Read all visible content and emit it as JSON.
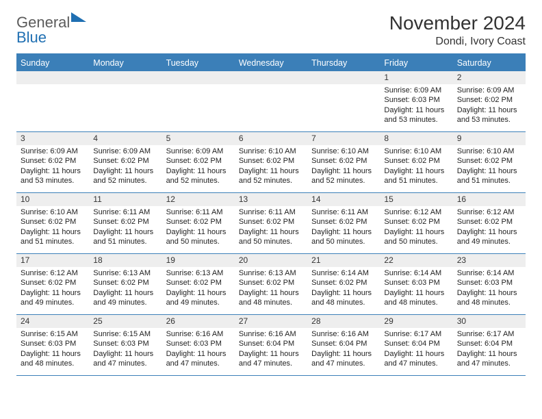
{
  "logo": {
    "word1": "General",
    "word2": "Blue",
    "tri_color": "#1f6fb2"
  },
  "title": "November 2024",
  "location": "Dondi, Ivory Coast",
  "weekdays": [
    "Sunday",
    "Monday",
    "Tuesday",
    "Wednesday",
    "Thursday",
    "Friday",
    "Saturday"
  ],
  "colors": {
    "header_bg": "#3b7fb8",
    "header_text": "#ffffff",
    "daynum_bg": "#eeeeee",
    "rule": "#3b7fb8",
    "text": "#222222",
    "page_bg": "#ffffff"
  },
  "weeks": [
    [
      null,
      null,
      null,
      null,
      null,
      {
        "n": "1",
        "sr": "Sunrise: 6:09 AM",
        "ss": "Sunset: 6:03 PM",
        "d1": "Daylight: 11 hours",
        "d2": "and 53 minutes."
      },
      {
        "n": "2",
        "sr": "Sunrise: 6:09 AM",
        "ss": "Sunset: 6:02 PM",
        "d1": "Daylight: 11 hours",
        "d2": "and 53 minutes."
      }
    ],
    [
      {
        "n": "3",
        "sr": "Sunrise: 6:09 AM",
        "ss": "Sunset: 6:02 PM",
        "d1": "Daylight: 11 hours",
        "d2": "and 53 minutes."
      },
      {
        "n": "4",
        "sr": "Sunrise: 6:09 AM",
        "ss": "Sunset: 6:02 PM",
        "d1": "Daylight: 11 hours",
        "d2": "and 52 minutes."
      },
      {
        "n": "5",
        "sr": "Sunrise: 6:09 AM",
        "ss": "Sunset: 6:02 PM",
        "d1": "Daylight: 11 hours",
        "d2": "and 52 minutes."
      },
      {
        "n": "6",
        "sr": "Sunrise: 6:10 AM",
        "ss": "Sunset: 6:02 PM",
        "d1": "Daylight: 11 hours",
        "d2": "and 52 minutes."
      },
      {
        "n": "7",
        "sr": "Sunrise: 6:10 AM",
        "ss": "Sunset: 6:02 PM",
        "d1": "Daylight: 11 hours",
        "d2": "and 52 minutes."
      },
      {
        "n": "8",
        "sr": "Sunrise: 6:10 AM",
        "ss": "Sunset: 6:02 PM",
        "d1": "Daylight: 11 hours",
        "d2": "and 51 minutes."
      },
      {
        "n": "9",
        "sr": "Sunrise: 6:10 AM",
        "ss": "Sunset: 6:02 PM",
        "d1": "Daylight: 11 hours",
        "d2": "and 51 minutes."
      }
    ],
    [
      {
        "n": "10",
        "sr": "Sunrise: 6:10 AM",
        "ss": "Sunset: 6:02 PM",
        "d1": "Daylight: 11 hours",
        "d2": "and 51 minutes."
      },
      {
        "n": "11",
        "sr": "Sunrise: 6:11 AM",
        "ss": "Sunset: 6:02 PM",
        "d1": "Daylight: 11 hours",
        "d2": "and 51 minutes."
      },
      {
        "n": "12",
        "sr": "Sunrise: 6:11 AM",
        "ss": "Sunset: 6:02 PM",
        "d1": "Daylight: 11 hours",
        "d2": "and 50 minutes."
      },
      {
        "n": "13",
        "sr": "Sunrise: 6:11 AM",
        "ss": "Sunset: 6:02 PM",
        "d1": "Daylight: 11 hours",
        "d2": "and 50 minutes."
      },
      {
        "n": "14",
        "sr": "Sunrise: 6:11 AM",
        "ss": "Sunset: 6:02 PM",
        "d1": "Daylight: 11 hours",
        "d2": "and 50 minutes."
      },
      {
        "n": "15",
        "sr": "Sunrise: 6:12 AM",
        "ss": "Sunset: 6:02 PM",
        "d1": "Daylight: 11 hours",
        "d2": "and 50 minutes."
      },
      {
        "n": "16",
        "sr": "Sunrise: 6:12 AM",
        "ss": "Sunset: 6:02 PM",
        "d1": "Daylight: 11 hours",
        "d2": "and 49 minutes."
      }
    ],
    [
      {
        "n": "17",
        "sr": "Sunrise: 6:12 AM",
        "ss": "Sunset: 6:02 PM",
        "d1": "Daylight: 11 hours",
        "d2": "and 49 minutes."
      },
      {
        "n": "18",
        "sr": "Sunrise: 6:13 AM",
        "ss": "Sunset: 6:02 PM",
        "d1": "Daylight: 11 hours",
        "d2": "and 49 minutes."
      },
      {
        "n": "19",
        "sr": "Sunrise: 6:13 AM",
        "ss": "Sunset: 6:02 PM",
        "d1": "Daylight: 11 hours",
        "d2": "and 49 minutes."
      },
      {
        "n": "20",
        "sr": "Sunrise: 6:13 AM",
        "ss": "Sunset: 6:02 PM",
        "d1": "Daylight: 11 hours",
        "d2": "and 48 minutes."
      },
      {
        "n": "21",
        "sr": "Sunrise: 6:14 AM",
        "ss": "Sunset: 6:02 PM",
        "d1": "Daylight: 11 hours",
        "d2": "and 48 minutes."
      },
      {
        "n": "22",
        "sr": "Sunrise: 6:14 AM",
        "ss": "Sunset: 6:03 PM",
        "d1": "Daylight: 11 hours",
        "d2": "and 48 minutes."
      },
      {
        "n": "23",
        "sr": "Sunrise: 6:14 AM",
        "ss": "Sunset: 6:03 PM",
        "d1": "Daylight: 11 hours",
        "d2": "and 48 minutes."
      }
    ],
    [
      {
        "n": "24",
        "sr": "Sunrise: 6:15 AM",
        "ss": "Sunset: 6:03 PM",
        "d1": "Daylight: 11 hours",
        "d2": "and 48 minutes."
      },
      {
        "n": "25",
        "sr": "Sunrise: 6:15 AM",
        "ss": "Sunset: 6:03 PM",
        "d1": "Daylight: 11 hours",
        "d2": "and 47 minutes."
      },
      {
        "n": "26",
        "sr": "Sunrise: 6:16 AM",
        "ss": "Sunset: 6:03 PM",
        "d1": "Daylight: 11 hours",
        "d2": "and 47 minutes."
      },
      {
        "n": "27",
        "sr": "Sunrise: 6:16 AM",
        "ss": "Sunset: 6:04 PM",
        "d1": "Daylight: 11 hours",
        "d2": "and 47 minutes."
      },
      {
        "n": "28",
        "sr": "Sunrise: 6:16 AM",
        "ss": "Sunset: 6:04 PM",
        "d1": "Daylight: 11 hours",
        "d2": "and 47 minutes."
      },
      {
        "n": "29",
        "sr": "Sunrise: 6:17 AM",
        "ss": "Sunset: 6:04 PM",
        "d1": "Daylight: 11 hours",
        "d2": "and 47 minutes."
      },
      {
        "n": "30",
        "sr": "Sunrise: 6:17 AM",
        "ss": "Sunset: 6:04 PM",
        "d1": "Daylight: 11 hours",
        "d2": "and 47 minutes."
      }
    ]
  ]
}
